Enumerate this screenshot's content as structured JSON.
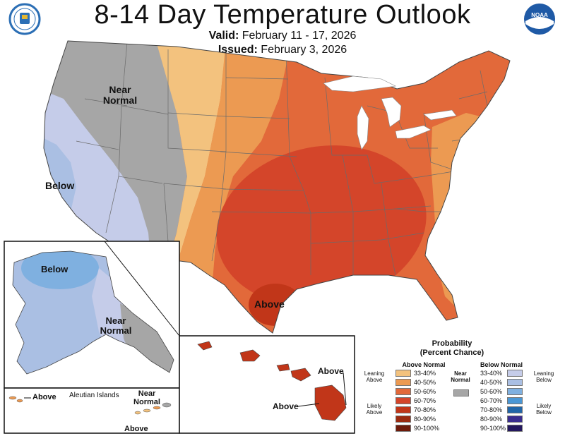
{
  "header": {
    "title": "8-14 Day Temperature Outlook",
    "valid_label": "Valid:",
    "valid_value": "February 11 - 17, 2026",
    "issued_label": "Issued:",
    "issued_value": "February 3, 2026"
  },
  "logos": {
    "left": "doc-seal-icon",
    "right": "noaa-logo-icon",
    "right_text": "NOAA"
  },
  "map_labels": {
    "conus_near_normal": "Near Normal",
    "conus_below": "Below",
    "conus_above": "Above",
    "alaska_below": "Below",
    "alaska_near_normal": "Near Normal",
    "hawaii_above_1": "Above",
    "hawaii_above_2": "Above",
    "aleutian_title": "Aleutian Islands",
    "aleutian_above_1": "Above",
    "aleutian_above_2": "Above",
    "aleutian_near_normal": "Near Normal"
  },
  "legend": {
    "title_line1": "Probability",
    "title_line2": "(Percent Chance)",
    "above_header": "Above Normal",
    "below_header": "Below Normal",
    "near_normal": "Near Normal",
    "leaning_above": "Leaning Above",
    "likely_above": "Likely Above",
    "leaning_below": "Leaning Below",
    "likely_below": "Likely Below",
    "above_ranges": [
      "33-40%",
      "40-50%",
      "50-60%",
      "60-70%",
      "70-80%",
      "80-90%",
      "90-100%"
    ],
    "above_colors": [
      "#f3c27e",
      "#ec9a52",
      "#e2693a",
      "#d4452a",
      "#c13619",
      "#9a2a10",
      "#6d1a0a"
    ],
    "below_ranges": [
      "33-40%",
      "40-50%",
      "50-60%",
      "60-70%",
      "70-80%",
      "80-90%",
      "90-100%"
    ],
    "below_colors": [
      "#c5cce9",
      "#aabfe3",
      "#7fb0e0",
      "#4a97d5",
      "#2166a8",
      "#3a2d8e",
      "#24185e"
    ],
    "near_color": "#a6a6a6"
  },
  "colors": {
    "near": "#a6a6a6",
    "below_33": "#c5cce9",
    "below_40": "#aabfe3",
    "below_50": "#7fb0e0",
    "above_33": "#f3c27e",
    "above_40": "#ec9a52",
    "above_50": "#e2693a",
    "above_60": "#d4452a",
    "above_70": "#c13619"
  }
}
